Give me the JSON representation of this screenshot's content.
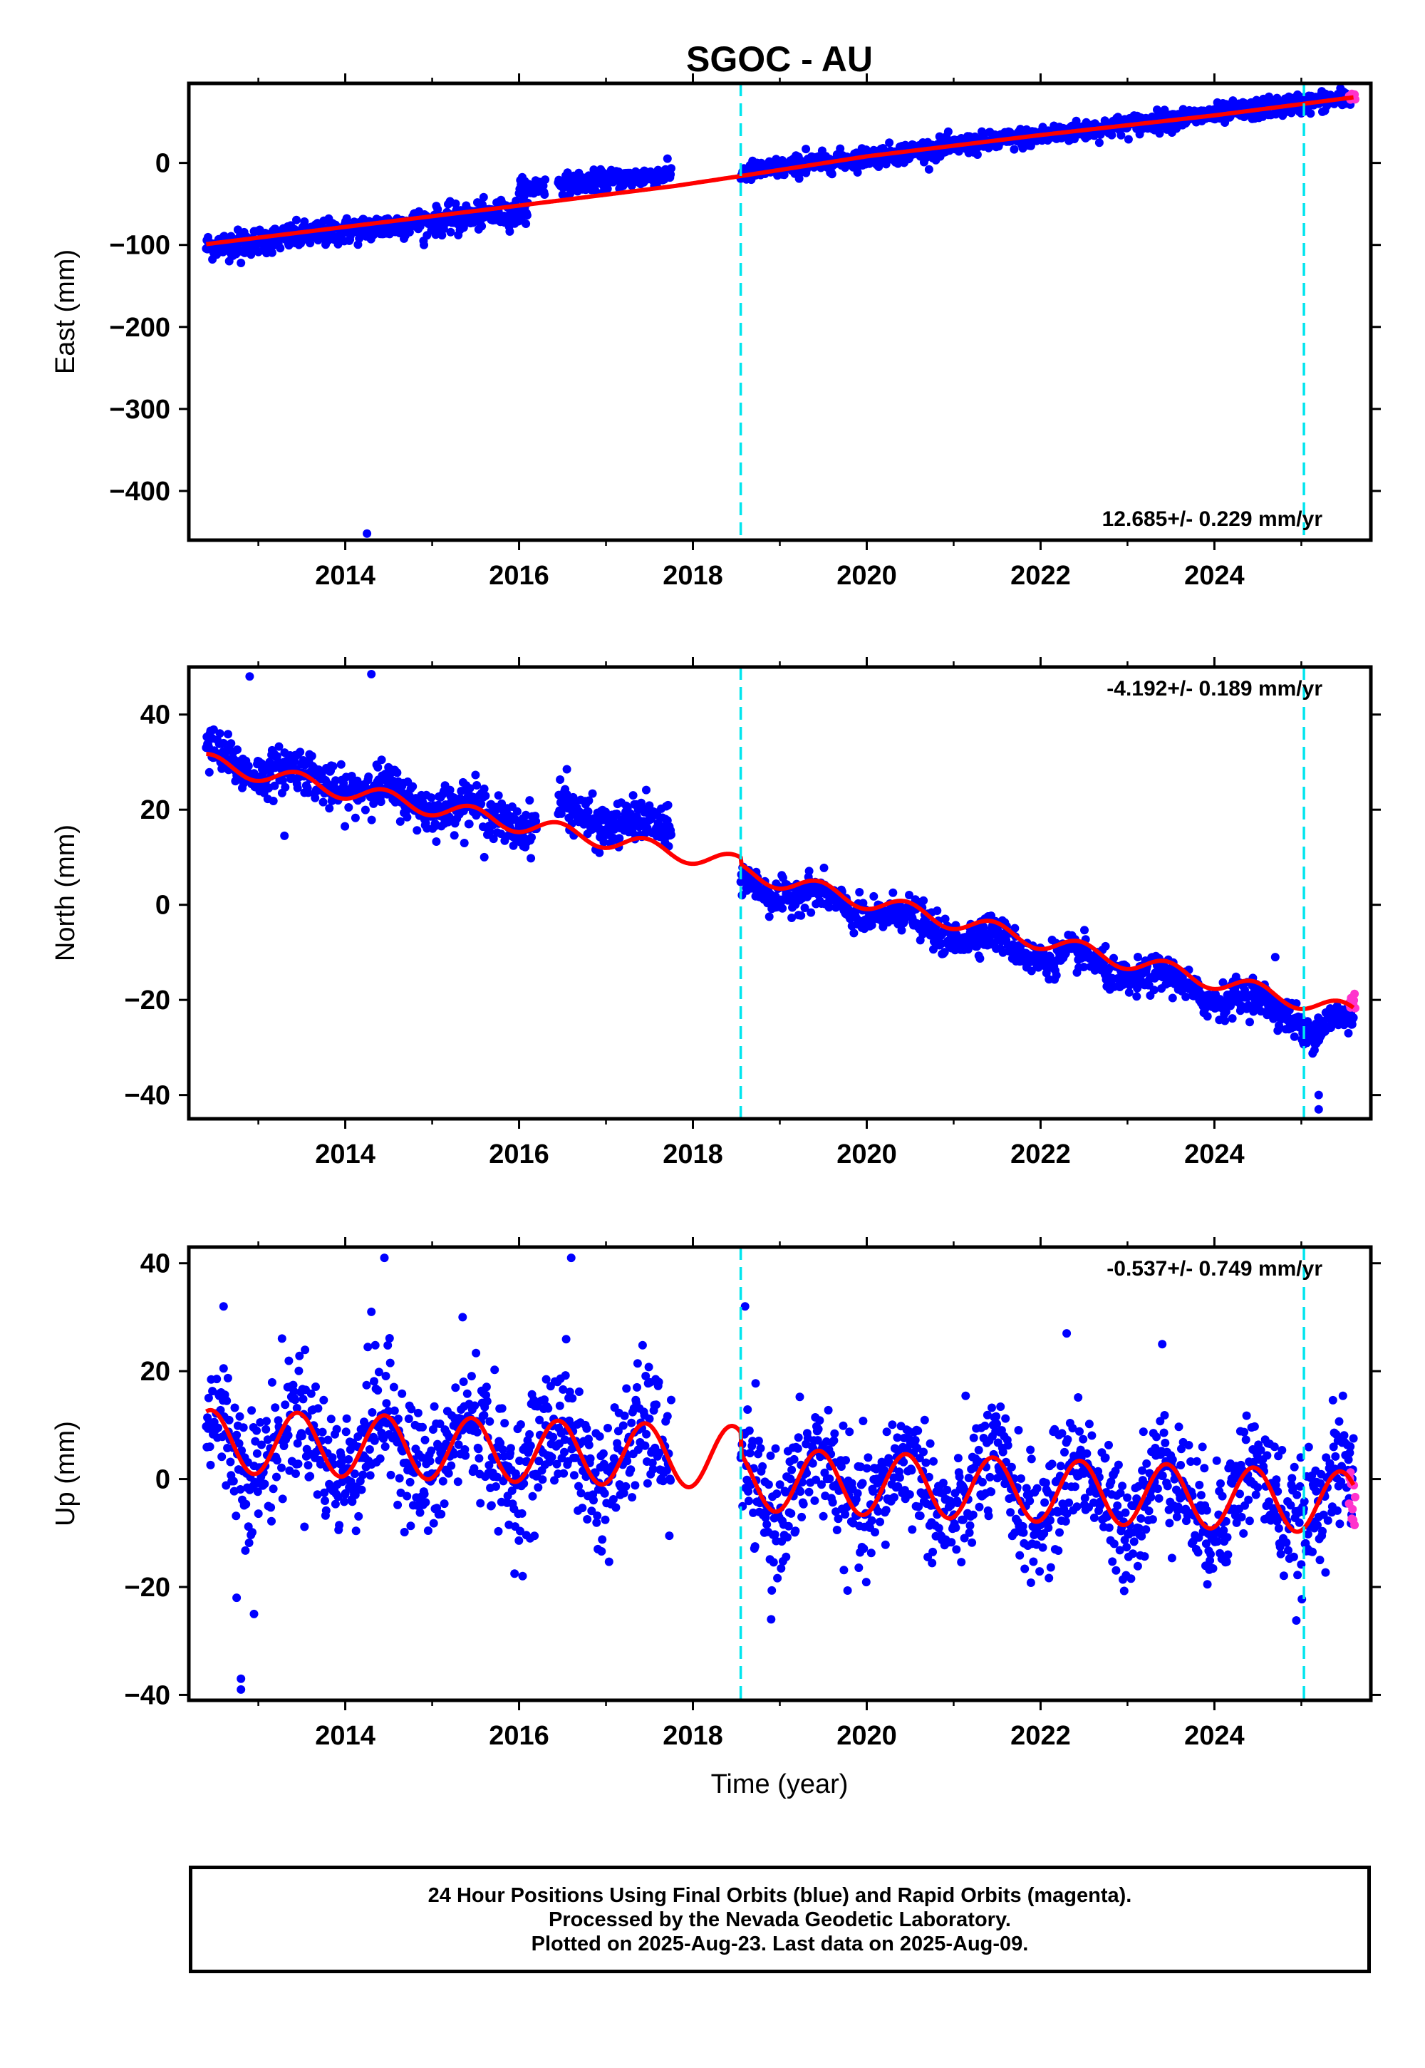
{
  "title": "SGOC - AU",
  "xlabel": "Time (year)",
  "footer": {
    "line1": "24 Hour Positions Using Final Orbits (blue) and Rapid Orbits (magenta).",
    "line2": "Processed by the Nevada Geodetic Laboratory.",
    "line3": "Plotted on 2025-Aug-23. Last data on 2025-Aug-09."
  },
  "colors": {
    "final_points": "#0000ff",
    "rapid_points": "#ff33cc",
    "model": "#ff0000",
    "breaks": "#00e5ee"
  },
  "chart_data": [
    {
      "type": "scatter",
      "component": "East",
      "ylabel": "East (mm)",
      "rate_text": "12.685+/- 0.229 mm/yr",
      "xlim": [
        2012.2,
        2025.8
      ],
      "ylim": [
        -460,
        97
      ],
      "yticks": [
        0,
        -100,
        -200,
        -300,
        -400
      ],
      "yticks_text": [
        "0",
        "−100",
        "−200",
        "−300",
        "−400"
      ],
      "xticks": [
        2014,
        2016,
        2018,
        2020,
        2022,
        2024
      ],
      "xticks_text": [
        "2014",
        "2016",
        "2018",
        "2020",
        "2022",
        "2024"
      ],
      "breaks": [
        2018.55,
        2025.03
      ],
      "model": {
        "x": [
          2012.4,
          2014,
          2016,
          2017.8,
          2018.55,
          2020,
          2022,
          2024,
          2025.6
        ],
        "y": [
          -99,
          -78,
          -52,
          -28,
          -16,
          8,
          34,
          58,
          80
        ]
      },
      "final_series": [
        {
          "x0": 2012.4,
          "x1": 2016.1,
          "y0": -102,
          "y1": -58,
          "scatter": 8
        },
        {
          "x0": 2016.0,
          "x1": 2016.3,
          "y0": -32,
          "y1": -28,
          "scatter": 6
        },
        {
          "x0": 2016.45,
          "x1": 2017.75,
          "y0": -26,
          "y1": -14,
          "scatter": 6
        },
        {
          "x0": 2018.55,
          "x1": 2025.6,
          "y0": -12,
          "y1": 80,
          "scatter": 6
        }
      ],
      "rapid_series": [
        {
          "x0": 2025.55,
          "x1": 2025.62,
          "y0": 80,
          "y1": 82,
          "scatter": 2
        }
      ],
      "outliers": [
        {
          "x": 2014.25,
          "y": -452
        },
        {
          "x": 2012.8,
          "y": -122
        },
        {
          "x": 2014.9,
          "y": -95
        },
        {
          "x": 2015.3,
          "y": -88
        },
        {
          "x": 2015.95,
          "y": -74
        },
        {
          "x": 2019.3,
          "y": 17
        }
      ]
    },
    {
      "type": "scatter",
      "component": "North",
      "ylabel": "North (mm)",
      "rate_text": "-4.192+/- 0.189 mm/yr",
      "xlim": [
        2012.2,
        2025.8
      ],
      "ylim": [
        -45,
        50
      ],
      "yticks": [
        40,
        20,
        0,
        -20,
        -40
      ],
      "yticks_text": [
        "40",
        "20",
        "0",
        "−20",
        "−40"
      ],
      "xticks": [
        2014,
        2016,
        2018,
        2020,
        2022,
        2024
      ],
      "xticks_text": [
        "2014",
        "2016",
        "2018",
        "2020",
        "2022",
        "2024"
      ],
      "breaks": [
        2018.55,
        2025.03
      ],
      "model": {
        "x": [
          2012.4,
          2014,
          2016,
          2018.55,
          2018.56,
          2020,
          2022,
          2024,
          2025.0,
          2025.6
        ],
        "y": [
          30,
          24,
          17,
          8.5,
          7,
          0.8,
          -7.6,
          -16,
          -20.2,
          -22.7
        ],
        "annual_amp": 1.8
      },
      "final_series": [
        {
          "x0": 2012.4,
          "x1": 2016.2,
          "y0": 31,
          "y1": 17,
          "scatter": 2.3
        },
        {
          "x0": 2016.45,
          "x1": 2017.75,
          "y0": 20,
          "y1": 15,
          "scatter": 2.3
        },
        {
          "x0": 2018.55,
          "x1": 2025.0,
          "y0": 5,
          "y1": -23,
          "scatter": 1.8
        },
        {
          "x0": 2025.0,
          "x1": 2025.6,
          "y0": -26,
          "y1": -25,
          "scatter": 1.8
        }
      ],
      "rapid_series": [
        {
          "x0": 2025.55,
          "x1": 2025.62,
          "y0": -21,
          "y1": -20,
          "scatter": 1
        }
      ],
      "outliers": [
        {
          "x": 2012.9,
          "y": 48
        },
        {
          "x": 2014.3,
          "y": 48.5
        },
        {
          "x": 2013.3,
          "y": 14.5
        },
        {
          "x": 2015.6,
          "y": 10
        },
        {
          "x": 2024.7,
          "y": -11
        },
        {
          "x": 2025.2,
          "y": -43
        },
        {
          "x": 2025.2,
          "y": -40
        },
        {
          "x": 2016.55,
          "y": 28.5
        }
      ]
    },
    {
      "type": "scatter",
      "component": "Up",
      "ylabel": "Up (mm)",
      "rate_text": "-0.537+/- 0.749 mm/yr",
      "xlim": [
        2012.2,
        2025.8
      ],
      "ylim": [
        -41,
        43
      ],
      "yticks": [
        40,
        20,
        0,
        -20,
        -40
      ],
      "yticks_text": [
        "40",
        "20",
        "0",
        "−20",
        "−40"
      ],
      "xticks": [
        2014,
        2016,
        2018,
        2020,
        2022,
        2024
      ],
      "xticks_text": [
        "2014",
        "2016",
        "2018",
        "2020",
        "2022",
        "2024"
      ],
      "breaks": [
        2018.55,
        2025.03
      ],
      "model": {
        "x": [
          2012.4,
          2018.55,
          2018.56,
          2025.0,
          2025.6
        ],
        "y": [
          7,
          4,
          0,
          -4,
          -4.5
        ],
        "annual_amp": 5.8
      },
      "final_series": [
        {
          "x0": 2012.4,
          "x1": 2017.75,
          "y0": 7,
          "y1": 4,
          "scatter": 6
        },
        {
          "x0": 2018.55,
          "x1": 2025.6,
          "y0": -1,
          "y1": -4,
          "scatter": 5.5
        }
      ],
      "rapid_series": [
        {
          "x0": 2025.55,
          "x1": 2025.62,
          "y0": -3,
          "y1": -4,
          "scatter": 4
        }
      ],
      "outliers": [
        {
          "x": 2012.8,
          "y": -39
        },
        {
          "x": 2012.8,
          "y": -37
        },
        {
          "x": 2012.75,
          "y": -22
        },
        {
          "x": 2012.95,
          "y": -25
        },
        {
          "x": 2014.45,
          "y": 41
        },
        {
          "x": 2016.6,
          "y": 41
        },
        {
          "x": 2018.6,
          "y": 32
        },
        {
          "x": 2014.3,
          "y": 31
        },
        {
          "x": 2015.35,
          "y": 30
        },
        {
          "x": 2012.6,
          "y": 32
        },
        {
          "x": 2022.3,
          "y": 27
        },
        {
          "x": 2023.4,
          "y": 25
        },
        {
          "x": 2018.9,
          "y": -26
        }
      ]
    }
  ]
}
